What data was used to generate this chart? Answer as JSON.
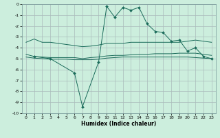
{
  "xlabel": "Humidex (Indice chaleur)",
  "bg_color": "#cceedd",
  "grid_color": "#aabbbb",
  "line_color": "#1a6b5a",
  "xlim": [
    -0.5,
    23.5
  ],
  "ylim": [
    -10,
    0
  ],
  "xticks": [
    0,
    1,
    2,
    3,
    4,
    5,
    6,
    7,
    8,
    9,
    10,
    11,
    12,
    13,
    14,
    15,
    16,
    17,
    18,
    19,
    20,
    21,
    22,
    23
  ],
  "yticks": [
    0,
    -1,
    -2,
    -3,
    -4,
    -5,
    -6,
    -7,
    -8,
    -9,
    -10
  ],
  "line_upper_x": [
    0,
    1,
    2,
    3,
    4,
    5,
    6,
    7,
    8,
    9,
    10,
    11,
    12,
    13,
    14,
    15,
    16,
    17,
    18,
    19,
    20,
    21,
    22,
    23
  ],
  "line_upper_y": [
    -3.5,
    -3.2,
    -3.5,
    -3.5,
    -3.6,
    -3.7,
    -3.8,
    -3.9,
    -3.85,
    -3.75,
    -3.6,
    -3.6,
    -3.6,
    -3.5,
    -3.5,
    -3.5,
    -3.5,
    -3.5,
    -3.5,
    -3.5,
    -3.4,
    -3.3,
    -3.4,
    -3.5
  ],
  "line_mid_x": [
    0,
    1,
    2,
    3,
    4,
    5,
    6,
    7,
    8,
    9,
    10,
    11,
    12,
    13,
    14,
    15,
    16,
    17,
    18,
    19,
    20,
    21,
    22,
    23
  ],
  "line_mid_y": [
    -4.6,
    -4.8,
    -4.85,
    -4.9,
    -4.9,
    -4.9,
    -4.9,
    -5.0,
    -4.9,
    -4.85,
    -4.75,
    -4.7,
    -4.7,
    -4.65,
    -4.6,
    -4.6,
    -4.55,
    -4.55,
    -4.55,
    -4.5,
    -4.5,
    -4.5,
    -4.6,
    -4.7
  ],
  "line_lower_x": [
    0,
    1,
    2,
    3,
    4,
    5,
    6,
    7,
    8,
    9,
    10,
    11,
    12,
    13,
    14,
    15,
    16,
    17,
    18,
    19,
    20,
    21,
    22,
    23
  ],
  "line_lower_y": [
    -4.85,
    -4.95,
    -5.0,
    -5.05,
    -5.05,
    -5.05,
    -5.1,
    -5.1,
    -5.1,
    -5.05,
    -4.95,
    -4.9,
    -4.85,
    -4.85,
    -4.85,
    -4.85,
    -4.85,
    -4.85,
    -4.85,
    -4.85,
    -4.85,
    -4.9,
    -4.95,
    -5.0
  ],
  "curve_x": [
    1,
    3,
    6,
    7,
    9,
    10,
    11,
    12,
    13,
    14,
    15,
    16,
    17,
    18,
    19,
    20,
    21,
    22,
    23
  ],
  "curve_y": [
    -4.8,
    -5.0,
    -6.3,
    -9.4,
    -5.3,
    -0.2,
    -1.2,
    -0.3,
    -0.55,
    -0.3,
    -1.8,
    -2.5,
    -2.6,
    -3.4,
    -3.3,
    -4.3,
    -4.0,
    -4.8,
    -5.0
  ]
}
